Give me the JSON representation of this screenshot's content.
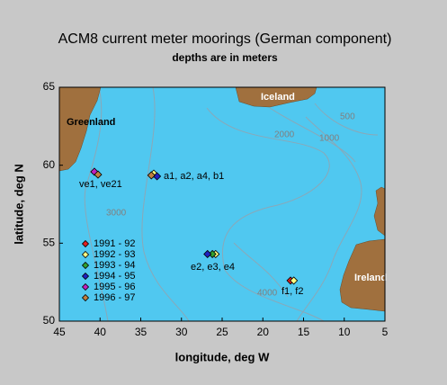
{
  "chart_data": {
    "type": "scatter",
    "title": "ACM8 current meter moorings (German component)",
    "subtitle": "depths are in meters",
    "x_label": "longitude, deg W",
    "y_label": "latitude, deg N",
    "xlim": [
      45,
      5
    ],
    "xticks": [
      45,
      40,
      35,
      30,
      25,
      20,
      15,
      10,
      5
    ],
    "ylim": [
      50,
      65
    ],
    "yticks": [
      50,
      55,
      60,
      65
    ],
    "series": [
      {
        "name": "1991 - 92",
        "color": "#e02020",
        "x": [
          16.6
        ],
        "y": [
          52.6
        ]
      },
      {
        "name": "1992 - 93",
        "color": "#ffff80",
        "x": [
          33.4,
          25.8,
          16.2
        ],
        "y": [
          59.46,
          54.3,
          52.6
        ]
      },
      {
        "name": "1993 - 94",
        "color": "#30a030",
        "x": [
          26.2
        ],
        "y": [
          54.3
        ]
      },
      {
        "name": "1994 - 95",
        "color": "#2020c0",
        "x": [
          33.0,
          26.8
        ],
        "y": [
          59.29,
          54.3
        ]
      },
      {
        "name": "1995 - 96",
        "color": "#c020c0",
        "x": [
          40.7
        ],
        "y": [
          59.58
        ]
      },
      {
        "name": "1996 - 97",
        "color": "#c08040",
        "x": [
          40.25,
          33.7
        ],
        "y": [
          59.4,
          59.35
        ]
      }
    ],
    "annotations": [
      "Greenland",
      "Iceland",
      "Ireland",
      "500",
      "1000",
      "2000",
      "3000",
      "4000",
      "ve1, ve21",
      "a1, a2, a4, b1",
      "e2, e3, e4",
      "f1, f2"
    ]
  }
}
